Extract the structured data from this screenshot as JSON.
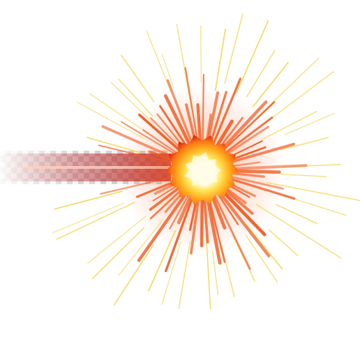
{
  "image": {
    "subject": "explosion-burst",
    "background": "#ffffff",
    "colors": {
      "core_white": "#fffde8",
      "core_yellow": "#ffd23a",
      "core_orange": "#ff7a12",
      "core_red": "#d9281a",
      "ray_orange": "#ef5a22",
      "ray_yellow": "#f2d44a",
      "trail_red": "#b4282a",
      "checker_light": "#f2f2f2",
      "checker_dark": "#cfc6c6"
    }
  }
}
